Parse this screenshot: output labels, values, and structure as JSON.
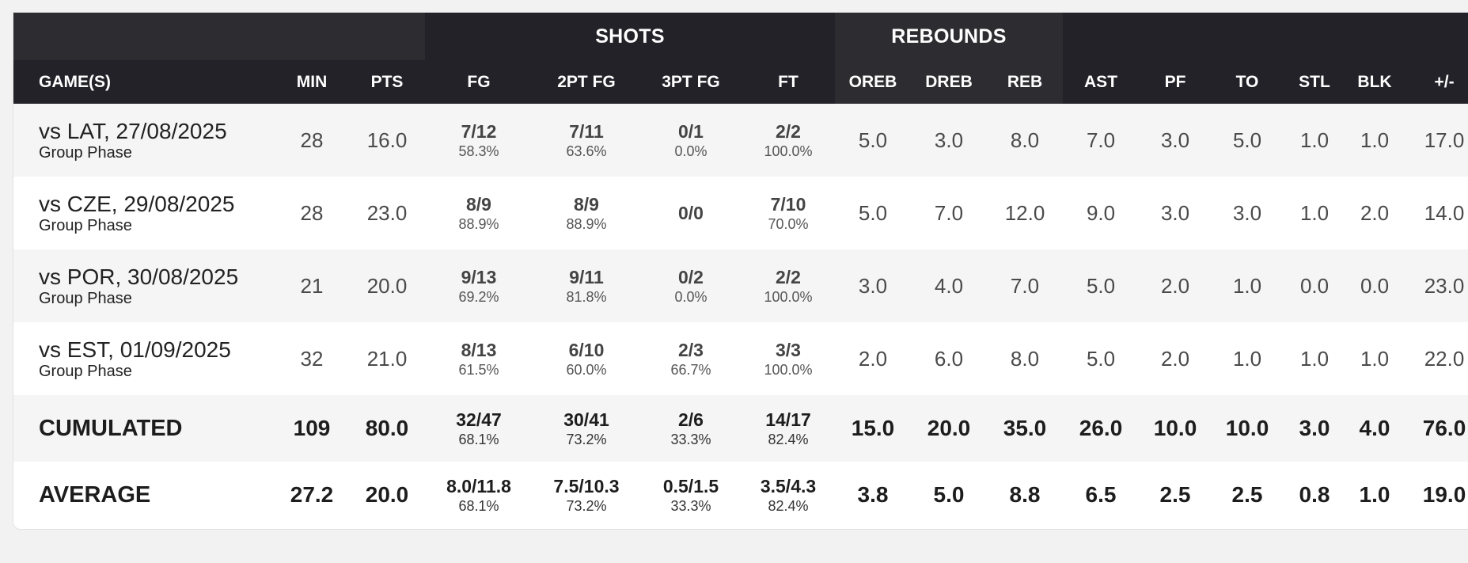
{
  "groups": {
    "shots": "SHOTS",
    "rebounds": "REBOUNDS"
  },
  "headers": {
    "games": "GAME(S)",
    "min": "MIN",
    "pts": "PTS",
    "fg": "FG",
    "fg2": "2PT FG",
    "fg3": "3PT FG",
    "ft": "FT",
    "oreb": "OREB",
    "dreb": "DREB",
    "reb": "REB",
    "ast": "AST",
    "pf": "PF",
    "to": "TO",
    "stl": "STL",
    "blk": "BLK",
    "pm": "+/-"
  },
  "games": [
    {
      "name": "vs LAT, 27/08/2025",
      "phase": "Group Phase",
      "min": "28",
      "pts": "16.0",
      "fg": [
        "7/12",
        "58.3%"
      ],
      "fg2": [
        "7/11",
        "63.6%"
      ],
      "fg3": [
        "0/1",
        "0.0%"
      ],
      "ft": [
        "2/2",
        "100.0%"
      ],
      "oreb": "5.0",
      "dreb": "3.0",
      "reb": "8.0",
      "ast": "7.0",
      "pf": "3.0",
      "to": "5.0",
      "stl": "1.0",
      "blk": "1.0",
      "pm": "17.0"
    },
    {
      "name": "vs CZE, 29/08/2025",
      "phase": "Group Phase",
      "min": "28",
      "pts": "23.0",
      "fg": [
        "8/9",
        "88.9%"
      ],
      "fg2": [
        "8/9",
        "88.9%"
      ],
      "fg3": [
        "0/0",
        ""
      ],
      "ft": [
        "7/10",
        "70.0%"
      ],
      "oreb": "5.0",
      "dreb": "7.0",
      "reb": "12.0",
      "ast": "9.0",
      "pf": "3.0",
      "to": "3.0",
      "stl": "1.0",
      "blk": "2.0",
      "pm": "14.0"
    },
    {
      "name": "vs POR, 30/08/2025",
      "phase": "Group Phase",
      "min": "21",
      "pts": "20.0",
      "fg": [
        "9/13",
        "69.2%"
      ],
      "fg2": [
        "9/11",
        "81.8%"
      ],
      "fg3": [
        "0/2",
        "0.0%"
      ],
      "ft": [
        "2/2",
        "100.0%"
      ],
      "oreb": "3.0",
      "dreb": "4.0",
      "reb": "7.0",
      "ast": "5.0",
      "pf": "2.0",
      "to": "1.0",
      "stl": "0.0",
      "blk": "0.0",
      "pm": "23.0"
    },
    {
      "name": "vs EST, 01/09/2025",
      "phase": "Group Phase",
      "min": "32",
      "pts": "21.0",
      "fg": [
        "8/13",
        "61.5%"
      ],
      "fg2": [
        "6/10",
        "60.0%"
      ],
      "fg3": [
        "2/3",
        "66.7%"
      ],
      "ft": [
        "3/3",
        "100.0%"
      ],
      "oreb": "2.0",
      "dreb": "6.0",
      "reb": "8.0",
      "ast": "5.0",
      "pf": "2.0",
      "to": "1.0",
      "stl": "1.0",
      "blk": "1.0",
      "pm": "22.0"
    }
  ],
  "cumulated": {
    "label": "CUMULATED",
    "min": "109",
    "pts": "80.0",
    "fg": [
      "32/47",
      "68.1%"
    ],
    "fg2": [
      "30/41",
      "73.2%"
    ],
    "fg3": [
      "2/6",
      "33.3%"
    ],
    "ft": [
      "14/17",
      "82.4%"
    ],
    "oreb": "15.0",
    "dreb": "20.0",
    "reb": "35.0",
    "ast": "26.0",
    "pf": "10.0",
    "to": "10.0",
    "stl": "3.0",
    "blk": "4.0",
    "pm": "76.0"
  },
  "average": {
    "label": "AVERAGE",
    "min": "27.2",
    "pts": "20.0",
    "fg": [
      "8.0/11.8",
      "68.1%"
    ],
    "fg2": [
      "7.5/10.3",
      "73.2%"
    ],
    "fg3": [
      "0.5/1.5",
      "33.3%"
    ],
    "ft": [
      "3.5/4.3",
      "82.4%"
    ],
    "oreb": "3.8",
    "dreb": "5.0",
    "reb": "8.8",
    "ast": "6.5",
    "pf": "2.5",
    "to": "2.5",
    "stl": "0.8",
    "blk": "1.0",
    "pm": "19.0"
  },
  "colors": {
    "header_dark": "#222228",
    "header_light": "#2d2d31",
    "row_alt": "#f5f5f5",
    "background": "#f2f2f2"
  }
}
